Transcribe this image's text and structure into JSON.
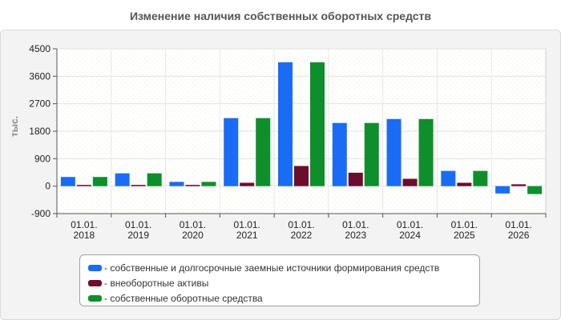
{
  "chart_data": {
    "type": "bar",
    "title": "Изменение наличия собственных оборотных средств",
    "ylabel": "тыс.",
    "xlabel": "",
    "ylim": [
      -900,
      4500
    ],
    "yticks": [
      "4500",
      "3600",
      "2700",
      "1800",
      "900",
      "0",
      "-900"
    ],
    "ytick_values": [
      4500,
      3600,
      2700,
      1800,
      900,
      0,
      -900
    ],
    "categories": [
      [
        "01.01.",
        "2018"
      ],
      [
        "01.01.",
        "2019"
      ],
      [
        "01.01.",
        "2020"
      ],
      [
        "01.01.",
        "2021"
      ],
      [
        "01.01.",
        "2022"
      ],
      [
        "01.01.",
        "2023"
      ],
      [
        "01.01.",
        "2024"
      ],
      [
        "01.01.",
        "2025"
      ],
      [
        "01.01.",
        "2026"
      ]
    ],
    "series": [
      {
        "name": "- собственные и долгосрочные заемные источники формирования средств",
        "color": "#1a6cf5",
        "values": [
          300,
          420,
          140,
          2230,
          4060,
          2070,
          2200,
          500,
          -240
        ]
      },
      {
        "name": "- внеоборотные активы",
        "color": "#6b0d2e",
        "values": [
          40,
          40,
          40,
          110,
          660,
          440,
          240,
          110,
          60
        ]
      },
      {
        "name": "- собственные оборотные средства",
        "color": "#0f8f2c",
        "values": [
          300,
          420,
          140,
          2230,
          4060,
          2070,
          2200,
          500,
          -260
        ]
      }
    ],
    "grid": true,
    "legend_position": "bottom"
  }
}
